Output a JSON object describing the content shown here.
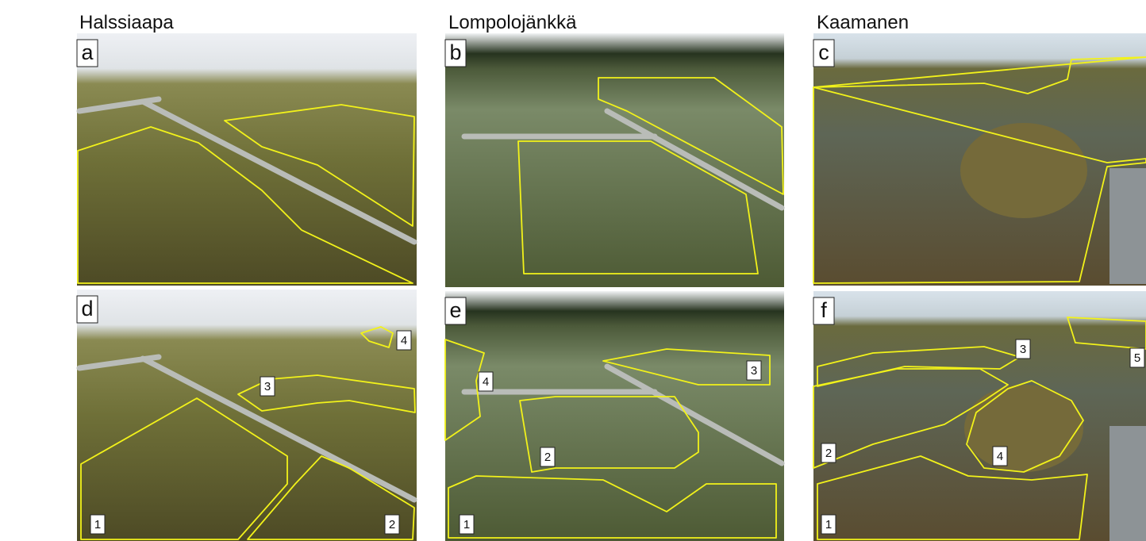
{
  "columns": [
    {
      "title": "Halssiaapa",
      "panels": [
        {
          "letter": "a"
        },
        {
          "letter": "d",
          "regions": [
            "1",
            "2",
            "3",
            "4"
          ]
        }
      ]
    },
    {
      "title": "Lompolojänkkä",
      "panels": [
        {
          "letter": "b"
        },
        {
          "letter": "e",
          "regions": [
            "1",
            "2",
            "3",
            "4"
          ]
        }
      ]
    },
    {
      "title": "Kaamanen",
      "panels": [
        {
          "letter": "c"
        },
        {
          "letter": "f",
          "regions": [
            "1",
            "2",
            "3",
            "4",
            "5"
          ]
        }
      ]
    }
  ]
}
